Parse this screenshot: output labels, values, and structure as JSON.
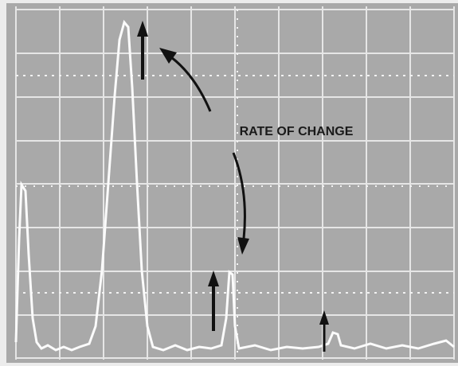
{
  "annotation": "RATE OF CHANGE"
}
